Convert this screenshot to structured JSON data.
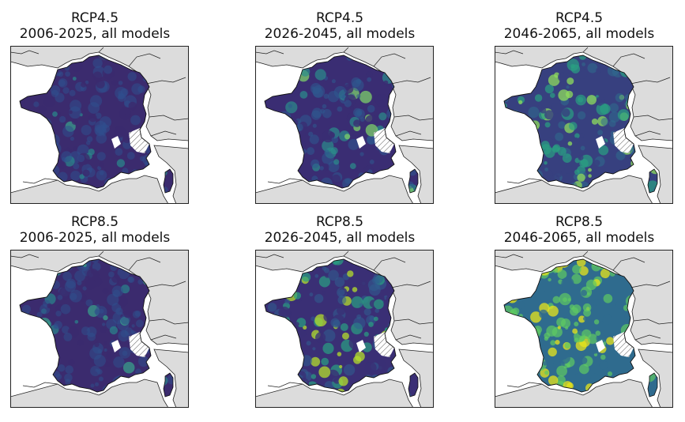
{
  "panels": [
    {
      "scenario": "RCP4.5",
      "period": "2006-2025, all models",
      "colors": {
        "bg": "#3b2b6e",
        "mid": "#2f4f8e",
        "hot": "#2a8a8c",
        "hot2": "#3a9d8b"
      },
      "intensity": 0.1
    },
    {
      "scenario": "RCP4.5",
      "period": "2026-2045, all models",
      "colors": {
        "bg": "#3a2d73",
        "mid": "#2d5a90",
        "hot": "#2b8d8c",
        "hot2": "#7ccf6a"
      },
      "intensity": 0.3
    },
    {
      "scenario": "RCP4.5",
      "period": "2046-2065, all models",
      "colors": {
        "bg": "#37407f",
        "mid": "#2f6b8e",
        "hot": "#2aa081",
        "hot2": "#8fdc5c"
      },
      "intensity": 0.5
    },
    {
      "scenario": "RCP8.5",
      "period": "2006-2025, all models",
      "colors": {
        "bg": "#3b2b6e",
        "mid": "#304f8c",
        "hot": "#2a868c",
        "hot2": "#3a9d8b"
      },
      "intensity": 0.12
    },
    {
      "scenario": "RCP8.5",
      "period": "2026-2045, all models",
      "colors": {
        "bg": "#3a2f75",
        "mid": "#2f5f90",
        "hot": "#2aa081",
        "hot2": "#b4de2c"
      },
      "intensity": 0.4
    },
    {
      "scenario": "RCP8.5",
      "period": "2046-2065, all models",
      "colors": {
        "bg": "#2f6b8e",
        "mid": "#2aa081",
        "hot": "#5ec962",
        "hot2": "#e8e419"
      },
      "intensity": 0.85
    }
  ]
}
